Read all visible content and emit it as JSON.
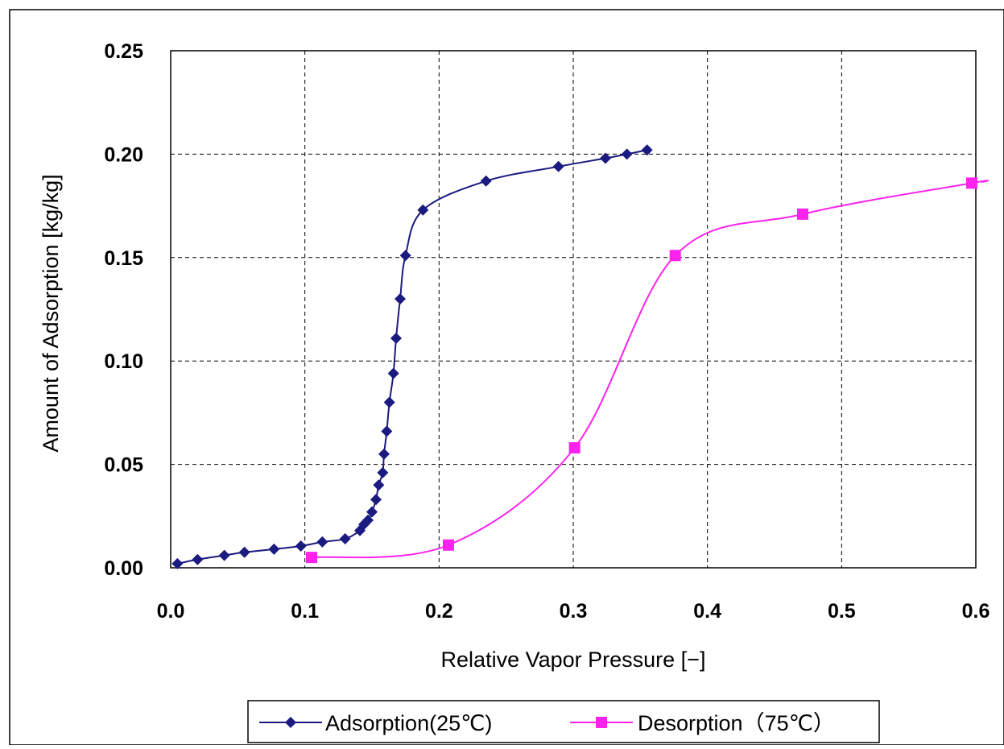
{
  "chart_data": {
    "type": "line",
    "xlabel": "Relative Vapor Pressure [−]",
    "ylabel": "Amount of Adsorption [kg/kg]",
    "xlim": [
      0,
      0.6
    ],
    "ylim": [
      0,
      0.25
    ],
    "xticks": [
      "0.0",
      "0.1",
      "0.2",
      "0.3",
      "0.4",
      "0.5",
      "0.6"
    ],
    "yticks": [
      "0.00",
      "0.05",
      "0.10",
      "0.15",
      "0.20",
      "0.25"
    ],
    "grid": "dashed",
    "legend_position": "bottom",
    "series": [
      {
        "name": "Adsorption(25℃)",
        "color": "#1a1a80",
        "marker": "diamond",
        "points": [
          [
            0.005,
            0.002
          ],
          [
            0.02,
            0.004
          ],
          [
            0.04,
            0.006
          ],
          [
            0.055,
            0.0075
          ],
          [
            0.077,
            0.009
          ],
          [
            0.097,
            0.0105
          ],
          [
            0.113,
            0.0125
          ],
          [
            0.13,
            0.014
          ],
          [
            0.141,
            0.018
          ],
          [
            0.144,
            0.021
          ],
          [
            0.147,
            0.023
          ],
          [
            0.15,
            0.027
          ],
          [
            0.153,
            0.033
          ],
          [
            0.155,
            0.04
          ],
          [
            0.158,
            0.046
          ],
          [
            0.159,
            0.055
          ],
          [
            0.161,
            0.066
          ],
          [
            0.163,
            0.08
          ],
          [
            0.166,
            0.094
          ],
          [
            0.168,
            0.111
          ],
          [
            0.171,
            0.13
          ],
          [
            0.175,
            0.151
          ],
          [
            0.188,
            0.173
          ],
          [
            0.235,
            0.187
          ],
          [
            0.289,
            0.194
          ],
          [
            0.324,
            0.198
          ],
          [
            0.34,
            0.2
          ],
          [
            0.355,
            0.202
          ]
        ]
      },
      {
        "name": "Desorption（75℃）",
        "color": "#ff22ee",
        "marker": "square",
        "points": [
          [
            0.105,
            0.005
          ],
          [
            0.207,
            0.011
          ],
          [
            0.301,
            0.058
          ],
          [
            0.376,
            0.151
          ],
          [
            0.471,
            0.171
          ],
          [
            0.597,
            0.186
          ]
        ]
      }
    ]
  }
}
